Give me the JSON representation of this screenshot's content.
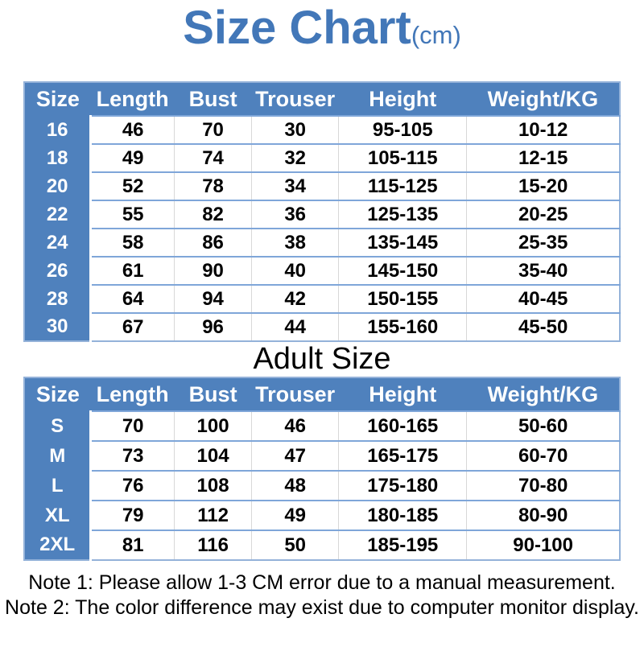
{
  "title": {
    "main": "Size Chart",
    "unit": "(cm)"
  },
  "adult_heading": "Adult Size",
  "chart_data": [
    {
      "type": "table",
      "section": "kids",
      "headers": [
        "Size",
        "Length",
        "Bust",
        "Trouser",
        "Height",
        "Weight/KG"
      ],
      "rows": [
        [
          "16",
          "46",
          "70",
          "30",
          "95-105",
          "10-12"
        ],
        [
          "18",
          "49",
          "74",
          "32",
          "105-115",
          "12-15"
        ],
        [
          "20",
          "52",
          "78",
          "34",
          "115-125",
          "15-20"
        ],
        [
          "22",
          "55",
          "82",
          "36",
          "125-135",
          "20-25"
        ],
        [
          "24",
          "58",
          "86",
          "38",
          "135-145",
          "25-35"
        ],
        [
          "26",
          "61",
          "90",
          "40",
          "145-150",
          "35-40"
        ],
        [
          "28",
          "64",
          "94",
          "42",
          "150-155",
          "40-45"
        ],
        [
          "30",
          "67",
          "96",
          "44",
          "155-160",
          "45-50"
        ]
      ]
    },
    {
      "type": "table",
      "section": "adult",
      "title": "Adult Size",
      "headers": [
        "Size",
        "Length",
        "Bust",
        "Trouser",
        "Height",
        "Weight/KG"
      ],
      "rows": [
        [
          "S",
          "70",
          "100",
          "46",
          "160-165",
          "50-60"
        ],
        [
          "M",
          "73",
          "104",
          "47",
          "165-175",
          "60-70"
        ],
        [
          "L",
          "76",
          "108",
          "48",
          "175-180",
          "70-80"
        ],
        [
          "XL",
          "79",
          "112",
          "49",
          "180-185",
          "80-90"
        ],
        [
          "2XL",
          "81",
          "116",
          "50",
          "185-195",
          "90-100"
        ]
      ]
    }
  ],
  "notes": [
    "Note 1: Please allow 1-3 CM error due to a manual measurement.",
    "Note 2: The color difference may exist due to computer monitor display."
  ],
  "colors": {
    "header_blue": "#4F81BD",
    "title_blue": "#4277B8",
    "row_divider": "#7FA6D9",
    "column_divider": "#D8D8D8",
    "outer_border": "#94B2D9",
    "header_text": "#FFFFFF",
    "data_text": "#000000"
  }
}
